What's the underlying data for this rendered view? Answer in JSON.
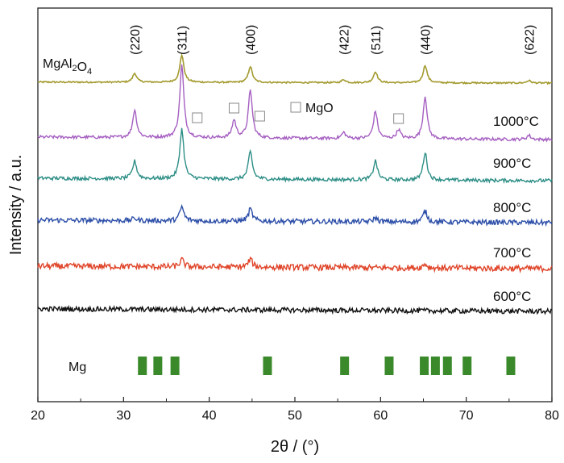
{
  "chart_data": {
    "type": "line",
    "xlabel": "2θ / (°)",
    "ylabel": "Intensity / a.u.",
    "xlim": [
      20,
      80
    ],
    "x_ticks": [
      "20",
      "30",
      "40",
      "50",
      "60",
      "70",
      "80"
    ],
    "reference_pattern": {
      "name": "MgAl2O4",
      "color": "#a39a2e",
      "peaks": [
        {
          "label": "(220)",
          "x": 31.3,
          "height": 0.18
        },
        {
          "label": "(311)",
          "x": 36.8,
          "height": 0.55
        },
        {
          "label": "(400)",
          "x": 44.8,
          "height": 0.32
        },
        {
          "label": "(422)",
          "x": 55.7,
          "height": 0.06
        },
        {
          "label": "(511)",
          "x": 59.4,
          "height": 0.22
        },
        {
          "label": "(440)",
          "x": 65.2,
          "height": 0.35
        },
        {
          "label": "(622)",
          "x": 77.3,
          "height": 0.05
        }
      ]
    },
    "mgo_marker_label": "MgO",
    "mgo_marker_positions": [
      38.6,
      42.9,
      45.9,
      62.1
    ],
    "series": [
      {
        "name": "1000°C",
        "color": "#a55fc1",
        "peaks": [
          [
            31.3,
            0.55
          ],
          [
            36.8,
            1.45
          ],
          [
            42.9,
            0.35
          ],
          [
            44.8,
            0.95
          ],
          [
            55.7,
            0.12
          ],
          [
            59.4,
            0.55
          ],
          [
            62.1,
            0.18
          ],
          [
            65.2,
            0.85
          ],
          [
            77.3,
            0.08
          ]
        ]
      },
      {
        "name": "900°C",
        "color": "#2d8e86",
        "peaks": [
          [
            31.3,
            0.35
          ],
          [
            36.8,
            1.0
          ],
          [
            44.8,
            0.55
          ],
          [
            59.4,
            0.38
          ],
          [
            65.2,
            0.55
          ]
        ]
      },
      {
        "name": "800°C",
        "color": "#2c4ea8",
        "peaks": [
          [
            31.3,
            0.05
          ],
          [
            36.8,
            0.28
          ],
          [
            44.8,
            0.24
          ],
          [
            59.4,
            0.08
          ],
          [
            65.2,
            0.22
          ]
        ]
      },
      {
        "name": "700°C",
        "color": "#e0452a",
        "peaks": [
          [
            36.8,
            0.14
          ],
          [
            44.8,
            0.16
          ],
          [
            65.2,
            0.08
          ]
        ]
      },
      {
        "name": "600°C",
        "color": "#111111",
        "peaks": []
      }
    ],
    "reference_bars": {
      "name": "Mg",
      "color": "#3a8a2b",
      "x": [
        32.2,
        34.0,
        36.0,
        46.8,
        55.8,
        61.0,
        65.1,
        66.4,
        67.8,
        70.1,
        75.2
      ]
    }
  },
  "colors": {
    "axis": "#222222",
    "mgo_box": "#888888"
  }
}
